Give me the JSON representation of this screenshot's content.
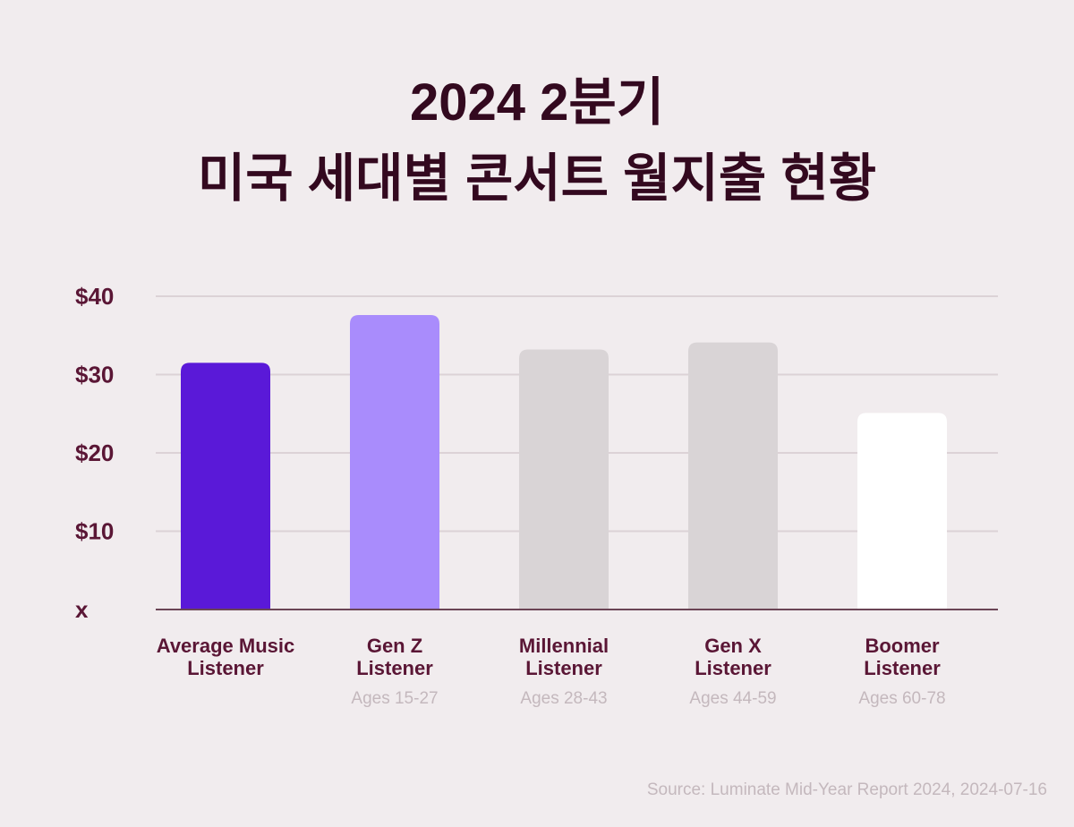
{
  "title": {
    "line1": "2024 2분기",
    "line2": "미국 세대별 콘서트 월지출 현황"
  },
  "source": "Source: Luminate Mid-Year Report 2024, 2024-07-16",
  "colors": {
    "background": "#f1ecee",
    "title": "#33091f",
    "label": "#5a1635",
    "sublabel": "#c4b8bd",
    "grid": "#dcd2d6",
    "axis": "#6b4455"
  },
  "chart_data": {
    "type": "bar",
    "categories": [
      [
        "Average Music",
        "Listener"
      ],
      [
        "Gen Z",
        "Listener"
      ],
      [
        "Millennial",
        "Listener"
      ],
      [
        "Gen X",
        "Listener"
      ],
      [
        "Boomer",
        "Listener"
      ]
    ],
    "category_sublabels": [
      "",
      "Ages 15-27",
      "Ages 28-43",
      "Ages 44-59",
      "Ages 60-78"
    ],
    "values": [
      31.5,
      37.6,
      33.2,
      34.1,
      25.1
    ],
    "bar_colors": [
      "#5a19d8",
      "#a98cfc",
      "#d9d4d6",
      "#d9d4d6",
      "#ffffff"
    ],
    "y_ticks": [
      {
        "value": 0,
        "label": "x"
      },
      {
        "value": 10,
        "label": "$10"
      },
      {
        "value": 20,
        "label": "$20"
      },
      {
        "value": 30,
        "label": "$30"
      },
      {
        "value": 40,
        "label": "$40"
      }
    ],
    "ylim": [
      0,
      40
    ],
    "grid": true,
    "xlabel": "",
    "ylabel": ""
  }
}
